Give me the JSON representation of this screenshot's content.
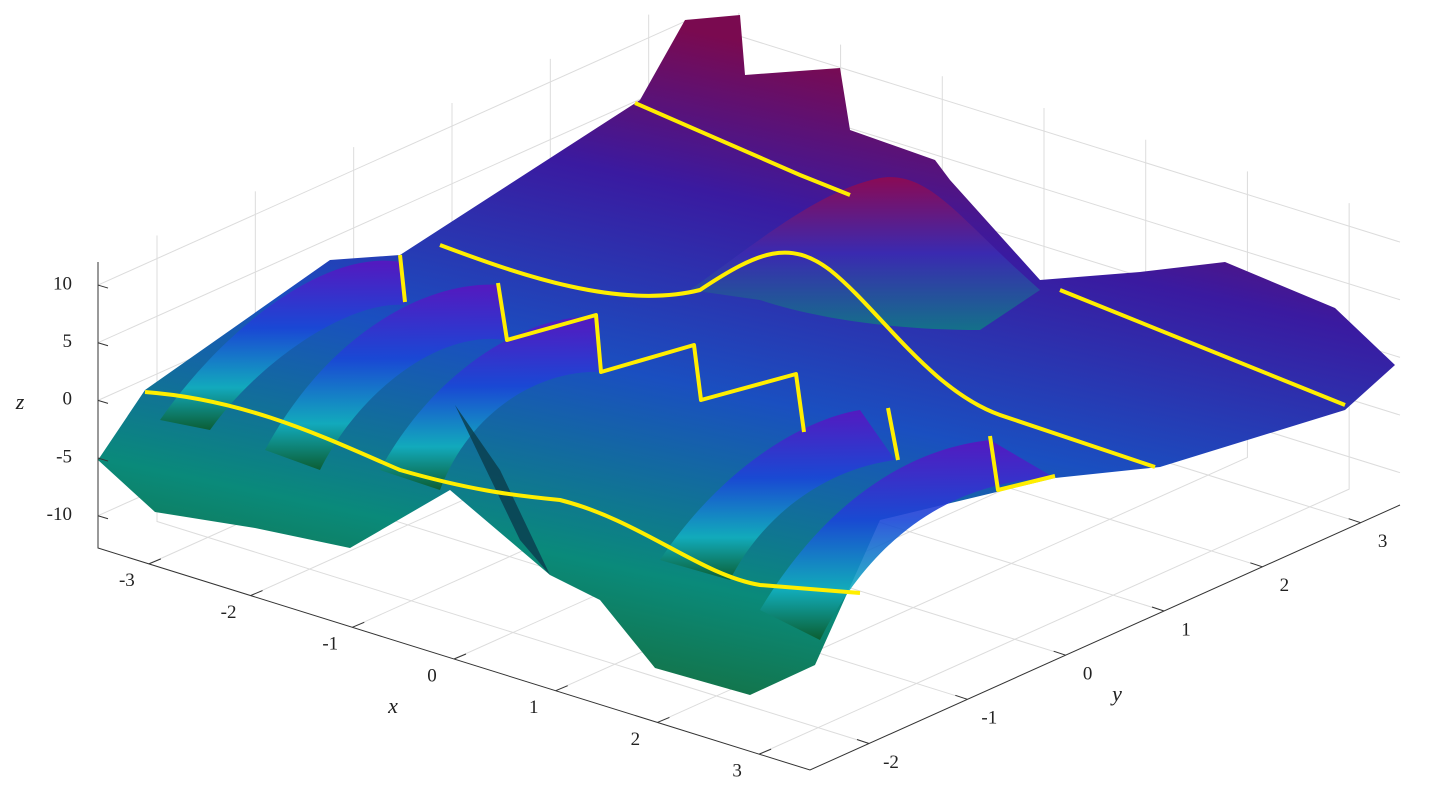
{
  "chart_data": {
    "type": "surface3d",
    "xlabel": "x",
    "ylabel": "y",
    "zlabel": "z",
    "xlim": [
      -3.5,
      3.5
    ],
    "ylim": [
      -2.6,
      3.4
    ],
    "zlim": [
      -12.8,
      12
    ],
    "xticks": [
      -3,
      -2,
      -1,
      0,
      1,
      2,
      3
    ],
    "yticks": [
      -2,
      -1,
      0,
      1,
      2,
      3
    ],
    "zticks": [
      -10,
      -5,
      0,
      5,
      10
    ],
    "grid": true
  }
}
